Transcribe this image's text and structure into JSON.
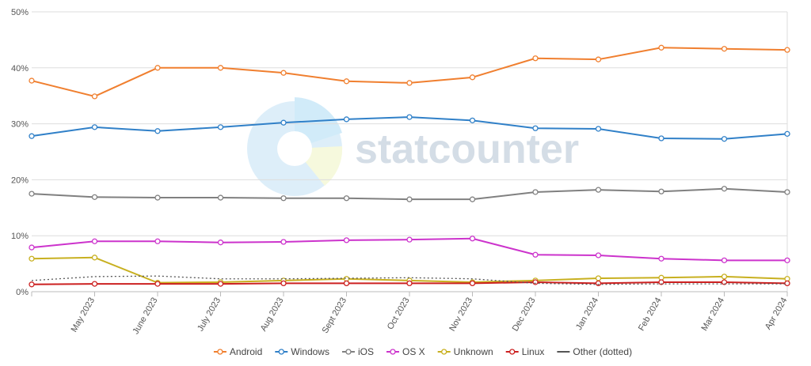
{
  "chart_data": {
    "type": "line",
    "watermark": "statcounter",
    "categories": [
      null,
      "May 2023",
      "June 2023",
      "July 2023",
      "Aug 2023",
      "Sept 2023",
      "Oct 2023",
      "Nov 2023",
      "Dec 2023",
      "Jan 2024",
      "Feb 2024",
      "Mar 2024",
      "Apr 2024"
    ],
    "series": [
      {
        "name": "Android",
        "color": "#f07f2f",
        "values": [
          37.7,
          34.9,
          40.0,
          40.0,
          39.1,
          37.6,
          37.3,
          38.3,
          41.7,
          41.5,
          43.6,
          43.4,
          43.2
        ]
      },
      {
        "name": "Windows",
        "color": "#3080c8",
        "values": [
          27.8,
          29.4,
          28.7,
          29.4,
          30.2,
          30.8,
          31.2,
          30.6,
          29.2,
          29.1,
          27.4,
          27.3,
          28.2
        ]
      },
      {
        "name": "iOS",
        "color": "#808080",
        "values": [
          17.5,
          16.9,
          16.8,
          16.8,
          16.7,
          16.7,
          16.5,
          16.5,
          17.8,
          18.2,
          17.9,
          18.4,
          17.8
        ]
      },
      {
        "name": "OS X",
        "color": "#cc33cc",
        "values": [
          7.9,
          9.0,
          9.0,
          8.8,
          8.9,
          9.2,
          9.3,
          9.5,
          6.6,
          6.5,
          5.9,
          5.6,
          5.6
        ]
      },
      {
        "name": "Unknown",
        "color": "#c8b020",
        "values": [
          5.9,
          6.1,
          1.6,
          1.7,
          2.0,
          2.3,
          2.0,
          1.7,
          2.0,
          2.4,
          2.5,
          2.7,
          2.3
        ]
      },
      {
        "name": "Linux",
        "color": "#cc2020",
        "values": [
          1.3,
          1.4,
          1.4,
          1.4,
          1.5,
          1.5,
          1.5,
          1.5,
          1.7,
          1.5,
          1.7,
          1.7,
          1.5
        ]
      },
      {
        "name": "Other (dotted)",
        "color": "#555555",
        "style": "dotted",
        "values": [
          2.0,
          2.7,
          2.8,
          2.3,
          2.3,
          2.4,
          2.5,
          2.3,
          1.5,
          1.3,
          1.4,
          1.4,
          1.4
        ]
      }
    ],
    "ylim": [
      0,
      50
    ],
    "yticks": [
      {
        "value": 0,
        "label": "0%"
      },
      {
        "value": 10,
        "label": "10%"
      },
      {
        "value": 20,
        "label": "20%"
      },
      {
        "value": 30,
        "label": "30%"
      },
      {
        "value": 40,
        "label": "40%"
      },
      {
        "value": 50,
        "label": "50%"
      }
    ],
    "grid": true,
    "legend": "bottom"
  }
}
